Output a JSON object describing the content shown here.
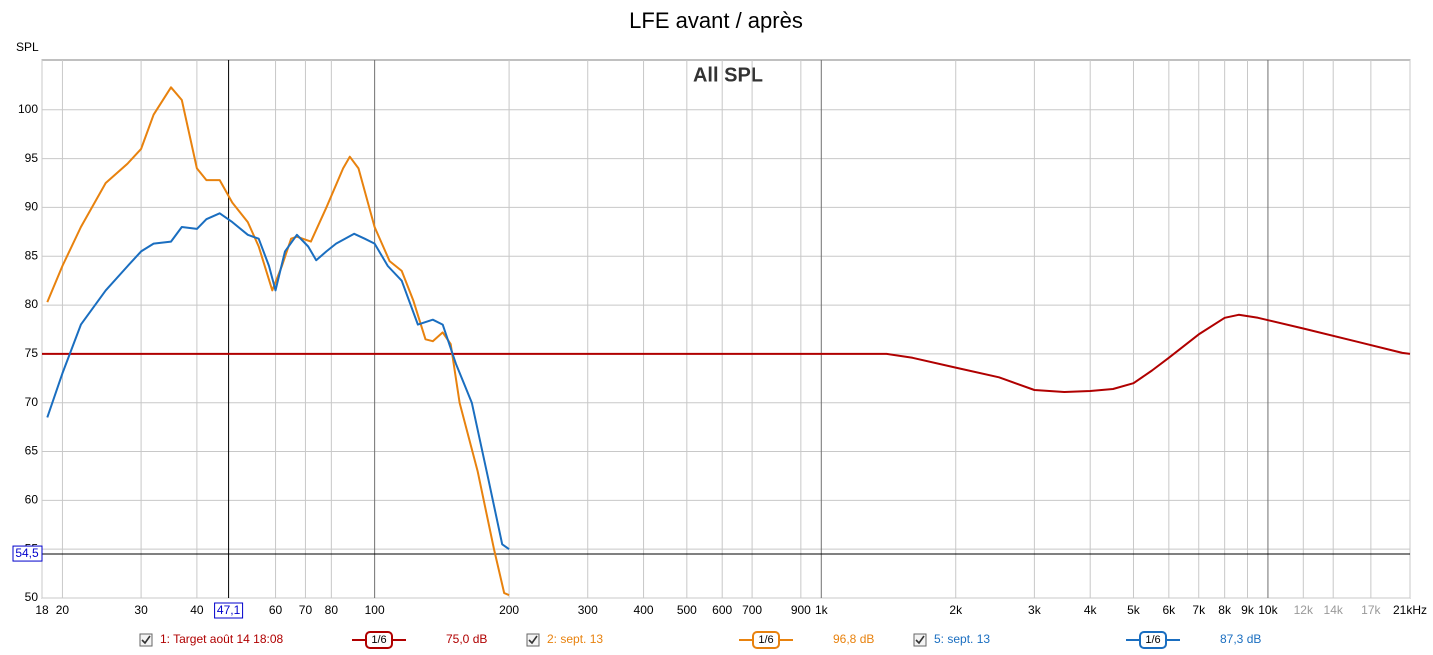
{
  "chart_data": {
    "type": "line",
    "title": "LFE avant / après",
    "subtitle": "All SPL",
    "y_label": "SPL",
    "log_x": true,
    "grid": true,
    "xlim": [
      18,
      20800
    ],
    "ylim": [
      50,
      105.1
    ],
    "yticks": [
      50,
      55,
      60,
      65,
      70,
      75,
      80,
      85,
      90,
      95,
      100
    ],
    "xticks": [
      18,
      20,
      30,
      40,
      60,
      70,
      80,
      100,
      200,
      300,
      400,
      500,
      600,
      700,
      900,
      {
        "value": 1000,
        "label": "1k"
      },
      {
        "value": 2000,
        "label": "2k"
      },
      {
        "value": 3000,
        "label": "3k"
      },
      {
        "value": 4000,
        "label": "4k"
      },
      {
        "value": 5000,
        "label": "5k"
      },
      {
        "value": 6000,
        "label": "6k"
      },
      {
        "value": 7000,
        "label": "7k"
      },
      {
        "value": 8000,
        "label": "8k"
      },
      {
        "value": 9000,
        "label": "9k"
      },
      {
        "value": 10000,
        "label": "10k"
      },
      {
        "value": 12000,
        "label": "12k"
      },
      {
        "value": 14000,
        "label": "14k"
      },
      {
        "value": 17000,
        "label": "17k"
      },
      {
        "value": 21000,
        "label": "21kHz"
      }
    ],
    "cursor": {
      "x": {
        "value": 47.1,
        "label": "47,1"
      },
      "y": {
        "value": 54.5,
        "label": "54,5"
      }
    },
    "series": [
      {
        "name": "1: Target août 14 18:08",
        "color": "#b00000",
        "smoothing": "1/6",
        "legend_value": "75,0 dB",
        "x": [
          18,
          1400,
          1600,
          2000,
          2500,
          3000,
          3500,
          4000,
          4500,
          5000,
          5500,
          6000,
          7000,
          8000,
          8600,
          9500,
          12000,
          16000,
          20000,
          20800
        ],
        "values": [
          75,
          75,
          74.6,
          73.6,
          72.6,
          71.3,
          71.1,
          71.2,
          71.4,
          72,
          73.3,
          74.6,
          77,
          78.7,
          79,
          78.7,
          77.6,
          76.2,
          75.1,
          75
        ]
      },
      {
        "name": "2: sept. 13",
        "color": "#e8820e",
        "smoothing": "1/6",
        "legend_value": "96,8 dB",
        "x": [
          18.5,
          20,
          22,
          25,
          28,
          30,
          32,
          35,
          37,
          40,
          42,
          45,
          48,
          52,
          55,
          59,
          62,
          65,
          67,
          72,
          78,
          85,
          88,
          92,
          100,
          108,
          115,
          122,
          130,
          135,
          142,
          148,
          155,
          170,
          185,
          195,
          200
        ],
        "values": [
          80.3,
          84,
          88,
          92.5,
          94.5,
          96,
          99.5,
          102.3,
          101,
          94,
          92.8,
          92.8,
          90.5,
          88.5,
          86,
          81.5,
          84,
          86.8,
          87,
          86.5,
          90,
          94,
          95.2,
          94,
          88,
          84.5,
          83.5,
          80.5,
          76.5,
          76.3,
          77.2,
          76,
          70,
          63,
          55,
          50.5,
          50.3
        ]
      },
      {
        "name": "5: sept. 13",
        "color": "#1a6ec0",
        "smoothing": "1/6",
        "legend_value": "87,3 dB",
        "x": [
          18.5,
          20,
          22,
          25,
          28,
          30,
          32,
          35,
          37,
          40,
          42,
          45,
          48,
          52,
          55,
          58,
          60,
          63,
          67,
          71,
          74,
          78,
          82,
          90,
          95,
          100,
          107,
          115,
          125,
          135,
          142,
          152,
          165,
          180,
          193,
          200
        ],
        "values": [
          68.5,
          73,
          78,
          81.5,
          84,
          85.5,
          86.3,
          86.5,
          88,
          87.8,
          88.8,
          89.4,
          88.5,
          87.2,
          86.8,
          84,
          81.5,
          85.5,
          87.2,
          86,
          84.6,
          85.5,
          86.3,
          87.3,
          86.8,
          86.3,
          84,
          82.5,
          78,
          78.5,
          78,
          74,
          70,
          62,
          55.5,
          55
        ]
      }
    ]
  }
}
